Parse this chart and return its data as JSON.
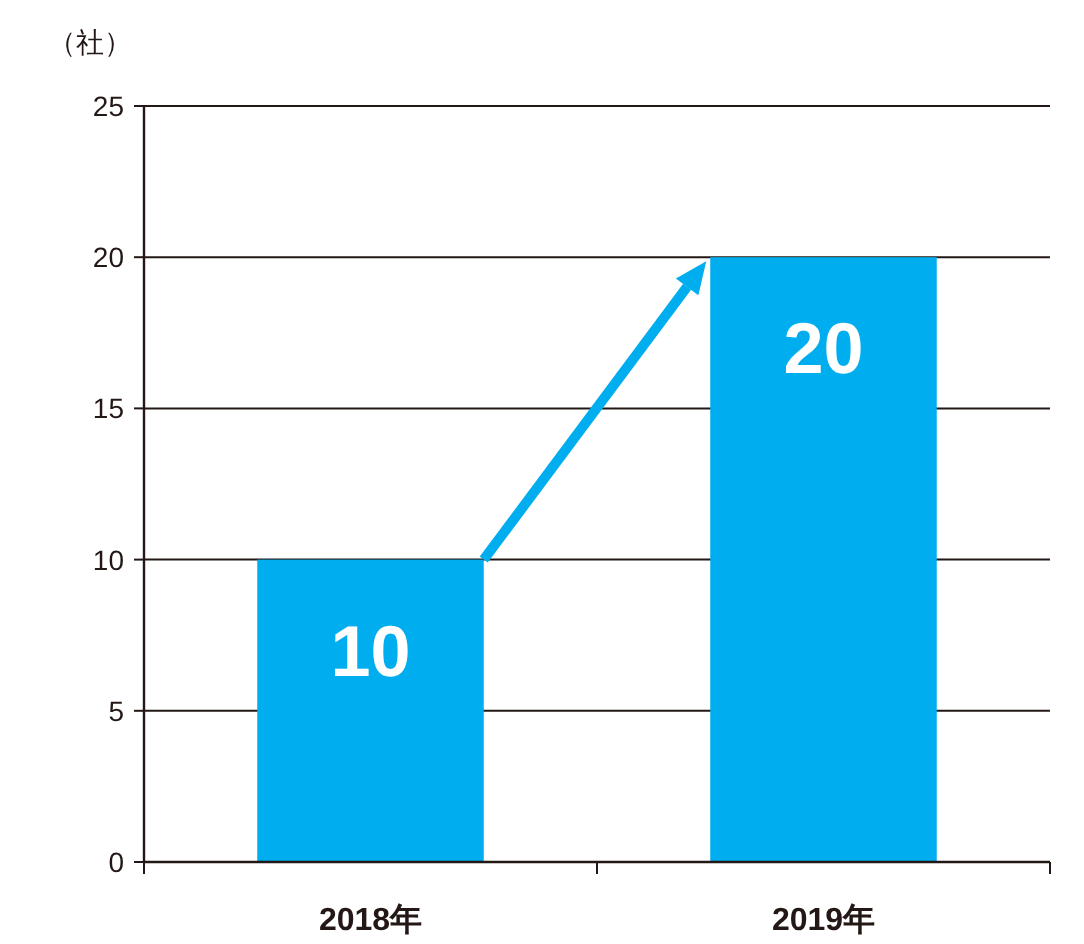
{
  "chart_data": {
    "type": "bar",
    "ylabel": "（社）",
    "categories": [
      "2018年",
      "2019年"
    ],
    "values": [
      10,
      20
    ],
    "color": "#00aeef",
    "ylim": [
      0,
      25
    ],
    "yticks": [
      0,
      5,
      10,
      15,
      20,
      25
    ],
    "grid": "y",
    "data_labels": true
  }
}
